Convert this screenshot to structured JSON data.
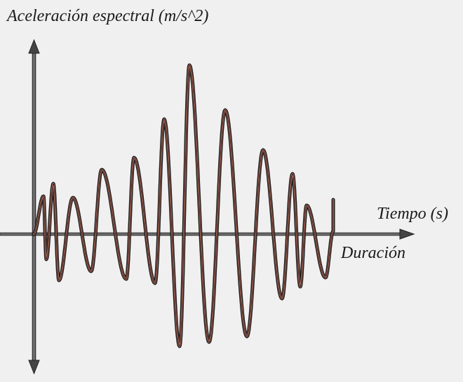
{
  "diagram": {
    "y_axis_label": "Aceleración espectral (m/s^2)",
    "x_axis_label": "Tiempo (s)",
    "duration_label": "Duración"
  },
  "colors": {
    "background": "#f0f0f0",
    "axis": "#3a3a3a",
    "wave_fill": "#d9826e",
    "wave_outline": "#1a1a1a"
  }
}
